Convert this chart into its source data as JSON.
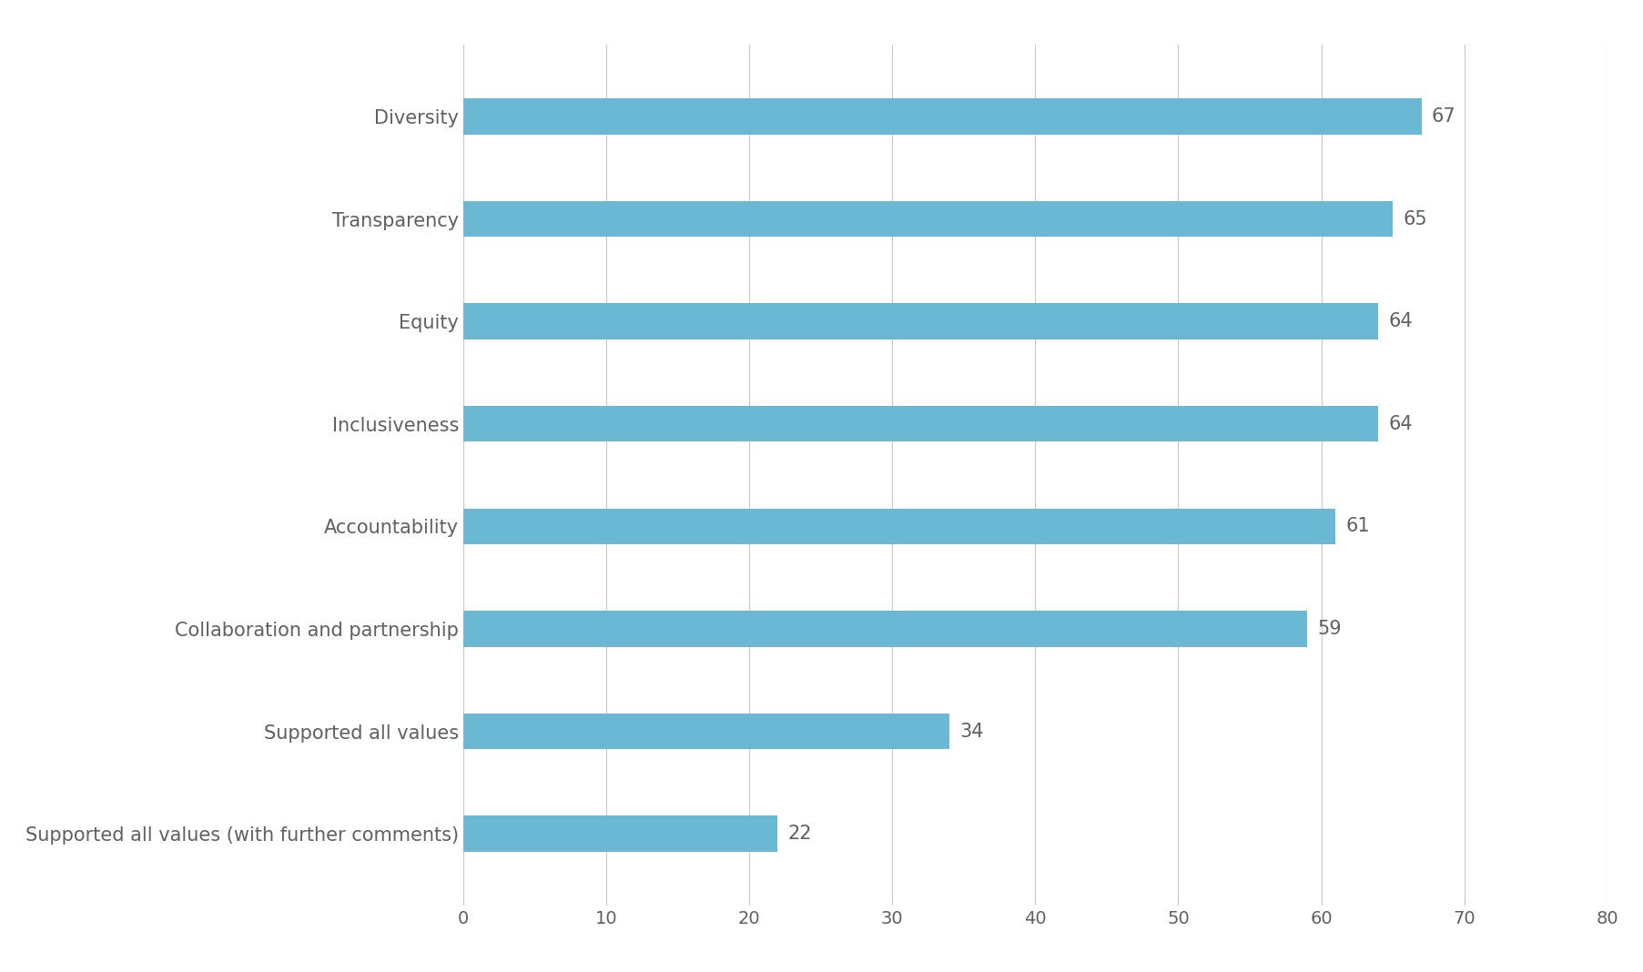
{
  "categories": [
    "Supported all values (with further comments)",
    "Supported all values",
    "Collaboration and partnership",
    "Accountability",
    "Inclusiveness",
    "Equity",
    "Transparency",
    "Diversity"
  ],
  "values": [
    22,
    34,
    59,
    61,
    64,
    64,
    65,
    67
  ],
  "bar_color": "#6bb8d4",
  "label_color": "#606060",
  "value_label_color": "#606060",
  "background_color": "#ffffff",
  "xlim": [
    0,
    80
  ],
  "xticks": [
    0,
    10,
    20,
    30,
    40,
    50,
    60,
    70,
    80
  ],
  "grid_color": "#c8c8c8",
  "bar_height": 0.35,
  "label_fontsize": 15,
  "tick_fontsize": 14,
  "value_fontsize": 15,
  "figsize": [
    18.06,
    10.68
  ],
  "dpi": 100
}
